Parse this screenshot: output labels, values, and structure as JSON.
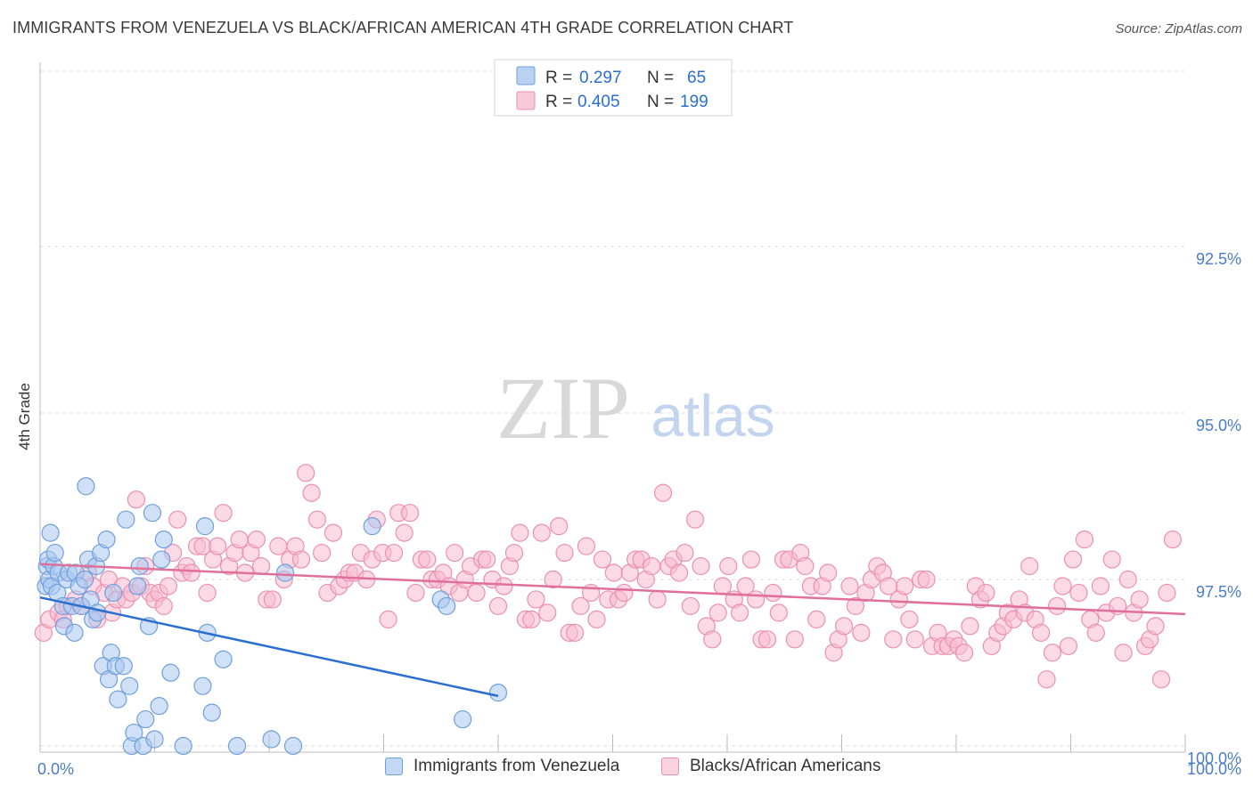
{
  "title": "IMMIGRANTS FROM VENEZUELA VS BLACK/AFRICAN AMERICAN 4TH GRADE CORRELATION CHART",
  "source": "Source: ZipAtlas.com",
  "watermark": {
    "zip": "ZIP",
    "atlas": "atlas"
  },
  "colors": {
    "blue_fill": "#a9c7ef",
    "blue_stroke": "#6f9fdc",
    "blue_line": "#2a6fd0",
    "pink_fill": "#f7bcd0",
    "pink_stroke": "#ec8fb0",
    "pink_line": "#e0709a",
    "tick_label": "#4a7cc7",
    "grid": "#d9d9d9"
  },
  "legend_box": {
    "rows": [
      {
        "r_label": "R =",
        "r_value": "0.297",
        "n_label": "N =",
        "n_value": "65",
        "color": "blue"
      },
      {
        "r_label": "R =",
        "r_value": "0.405",
        "n_label": "N =",
        "n_value": "199",
        "color": "pink"
      }
    ]
  },
  "legend_bottom": [
    {
      "label": "Immigrants from Venezuela",
      "color": "blue"
    },
    {
      "label": "Blacks/African Americans",
      "color": "pink"
    }
  ],
  "chart_data": {
    "type": "scatter",
    "title": "IMMIGRANTS FROM VENEZUELA VS BLACK/AFRICAN AMERICAN 4TH GRADE CORRELATION CHART",
    "xlabel": "",
    "ylabel": "4th Grade",
    "xlim": [
      0,
      100
    ],
    "ylim": [
      90.5,
      100.1
    ],
    "x_tick_labels": [
      {
        "value": 0,
        "label": "0.0%"
      },
      {
        "value": 100,
        "label": "100.0%"
      }
    ],
    "y_tick_labels": [
      {
        "value": 100.0,
        "label": "100.0%"
      },
      {
        "value": 97.5,
        "label": "97.5%"
      },
      {
        "value": 95.0,
        "label": "95.0%"
      },
      {
        "value": 92.5,
        "label": "92.5%"
      }
    ],
    "grid": true,
    "legend_position": "top-center",
    "series": [
      {
        "name": "Immigrants from Venezuela",
        "color": "blue",
        "R": 0.297,
        "N": 65,
        "trend": {
          "x": [
            0,
            40
          ],
          "y": [
            97.77,
            99.25
          ]
        },
        "points": [
          [
            0.5,
            97.6
          ],
          [
            0.6,
            97.3
          ],
          [
            0.7,
            97.2
          ],
          [
            0.8,
            97.5
          ],
          [
            0.9,
            96.8
          ],
          [
            1.0,
            97.6
          ],
          [
            1.2,
            97.3
          ],
          [
            1.3,
            97.1
          ],
          [
            1.5,
            97.7
          ],
          [
            1.6,
            97.4
          ],
          [
            2.0,
            97.9
          ],
          [
            2.1,
            98.2
          ],
          [
            2.3,
            97.5
          ],
          [
            2.5,
            97.4
          ],
          [
            2.8,
            97.9
          ],
          [
            3.0,
            98.3
          ],
          [
            3.1,
            97.4
          ],
          [
            3.4,
            97.6
          ],
          [
            3.6,
            97.9
          ],
          [
            3.9,
            97.5
          ],
          [
            4.0,
            96.1
          ],
          [
            4.2,
            97.2
          ],
          [
            4.4,
            97.8
          ],
          [
            4.6,
            98.1
          ],
          [
            4.9,
            97.3
          ],
          [
            5.0,
            98.0
          ],
          [
            5.3,
            97.1
          ],
          [
            5.5,
            98.8
          ],
          [
            5.8,
            96.9
          ],
          [
            6.0,
            99.0
          ],
          [
            6.2,
            98.6
          ],
          [
            6.4,
            97.7
          ],
          [
            6.6,
            98.8
          ],
          [
            6.8,
            99.3
          ],
          [
            7.3,
            98.8
          ],
          [
            7.5,
            96.6
          ],
          [
            7.8,
            99.1
          ],
          [
            8.0,
            100.0
          ],
          [
            8.2,
            99.8
          ],
          [
            8.5,
            97.6
          ],
          [
            8.7,
            97.3
          ],
          [
            9.0,
            100.0
          ],
          [
            9.2,
            99.6
          ],
          [
            9.5,
            98.2
          ],
          [
            9.8,
            96.5
          ],
          [
            10.0,
            99.9
          ],
          [
            10.4,
            99.4
          ],
          [
            10.6,
            97.2
          ],
          [
            10.8,
            96.9
          ],
          [
            11.4,
            98.9
          ],
          [
            12.5,
            100.0
          ],
          [
            14.2,
            99.1
          ],
          [
            14.4,
            96.7
          ],
          [
            14.6,
            98.3
          ],
          [
            15.0,
            99.5
          ],
          [
            16.0,
            98.7
          ],
          [
            17.2,
            100.0
          ],
          [
            20.2,
            99.9
          ],
          [
            21.4,
            97.4
          ],
          [
            22.1,
            100.0
          ],
          [
            29.0,
            96.7
          ],
          [
            35.0,
            97.8
          ],
          [
            35.5,
            97.9
          ],
          [
            36.9,
            99.6
          ],
          [
            40.0,
            99.2
          ]
        ]
      },
      {
        "name": "Blacks/African Americans",
        "color": "pink",
        "R": 0.405,
        "N": 199,
        "trend": {
          "x": [
            0,
            100
          ],
          "y": [
            97.27,
            98.02
          ]
        },
        "points": [
          [
            0.3,
            98.3
          ],
          [
            0.8,
            98.1
          ],
          [
            1.6,
            98.0
          ],
          [
            2.0,
            98.1
          ],
          [
            2.4,
            97.9
          ],
          [
            3.1,
            97.8
          ],
          [
            3.6,
            97.9
          ],
          [
            4.2,
            97.4
          ],
          [
            4.6,
            97.6
          ],
          [
            5.0,
            98.1
          ],
          [
            5.6,
            97.7
          ],
          [
            6.0,
            97.5
          ],
          [
            6.3,
            98.0
          ],
          [
            6.7,
            97.8
          ],
          [
            7.2,
            97.6
          ],
          [
            7.5,
            97.8
          ],
          [
            8.0,
            97.7
          ],
          [
            8.4,
            96.3
          ],
          [
            8.8,
            97.6
          ],
          [
            9.2,
            97.3
          ],
          [
            9.6,
            97.7
          ],
          [
            10.0,
            97.8
          ],
          [
            10.4,
            97.7
          ],
          [
            10.8,
            97.9
          ],
          [
            11.2,
            97.6
          ],
          [
            11.6,
            97.1
          ],
          [
            12.0,
            96.6
          ],
          [
            12.4,
            97.4
          ],
          [
            12.8,
            97.3
          ],
          [
            13.2,
            97.4
          ],
          [
            13.7,
            97.0
          ],
          [
            14.2,
            97.0
          ],
          [
            14.6,
            97.7
          ],
          [
            15.1,
            97.2
          ],
          [
            15.5,
            97.0
          ],
          [
            16.0,
            96.5
          ],
          [
            16.5,
            97.3
          ],
          [
            17.0,
            97.1
          ],
          [
            17.4,
            96.9
          ],
          [
            17.9,
            97.4
          ],
          [
            18.4,
            97.1
          ],
          [
            18.9,
            96.9
          ],
          [
            19.3,
            97.3
          ],
          [
            19.8,
            97.8
          ],
          [
            20.3,
            97.8
          ],
          [
            20.8,
            97.0
          ],
          [
            21.3,
            97.5
          ],
          [
            21.8,
            97.2
          ],
          [
            22.3,
            97.0
          ],
          [
            22.8,
            97.2
          ],
          [
            23.2,
            95.9
          ],
          [
            23.7,
            96.2
          ],
          [
            24.2,
            96.6
          ],
          [
            24.6,
            97.1
          ],
          [
            25.1,
            97.7
          ],
          [
            25.6,
            96.8
          ],
          [
            26.1,
            97.6
          ],
          [
            26.6,
            97.5
          ],
          [
            27.0,
            97.4
          ],
          [
            27.5,
            97.4
          ],
          [
            28.0,
            97.1
          ],
          [
            28.5,
            97.5
          ],
          [
            29.0,
            97.2
          ],
          [
            29.4,
            96.6
          ],
          [
            29.9,
            97.1
          ],
          [
            30.4,
            98.1
          ],
          [
            30.9,
            97.1
          ],
          [
            31.3,
            96.5
          ],
          [
            31.8,
            96.8
          ],
          [
            32.3,
            96.5
          ],
          [
            32.8,
            97.7
          ],
          [
            33.3,
            97.2
          ],
          [
            33.8,
            97.2
          ],
          [
            34.2,
            97.5
          ],
          [
            34.7,
            97.5
          ],
          [
            35.2,
            97.4
          ],
          [
            35.7,
            97.6
          ],
          [
            36.2,
            97.1
          ],
          [
            36.6,
            97.7
          ],
          [
            37.1,
            97.5
          ],
          [
            37.6,
            97.3
          ],
          [
            38.1,
            97.7
          ],
          [
            38.6,
            97.2
          ],
          [
            39.0,
            97.2
          ],
          [
            39.5,
            97.5
          ],
          [
            40.0,
            97.9
          ],
          [
            40.5,
            97.6
          ],
          [
            41.0,
            97.3
          ],
          [
            41.4,
            97.1
          ],
          [
            41.9,
            96.8
          ],
          [
            42.4,
            98.1
          ],
          [
            42.9,
            98.1
          ],
          [
            43.3,
            97.8
          ],
          [
            43.8,
            96.8
          ],
          [
            44.3,
            98.0
          ],
          [
            44.8,
            97.5
          ],
          [
            45.3,
            96.7
          ],
          [
            45.8,
            97.1
          ],
          [
            46.2,
            98.3
          ],
          [
            46.7,
            98.3
          ],
          [
            47.2,
            97.9
          ],
          [
            47.7,
            97.0
          ],
          [
            48.1,
            97.7
          ],
          [
            48.6,
            98.1
          ],
          [
            49.1,
            97.2
          ],
          [
            49.6,
            97.8
          ],
          [
            50.1,
            97.4
          ],
          [
            50.5,
            97.8
          ],
          [
            51.0,
            97.7
          ],
          [
            51.5,
            97.4
          ],
          [
            52.0,
            97.2
          ],
          [
            52.5,
            97.2
          ],
          [
            52.9,
            97.5
          ],
          [
            53.4,
            97.3
          ],
          [
            53.9,
            97.8
          ],
          [
            54.4,
            96.2
          ],
          [
            54.9,
            97.3
          ],
          [
            55.3,
            97.2
          ],
          [
            55.8,
            97.4
          ],
          [
            56.3,
            97.1
          ],
          [
            56.8,
            97.9
          ],
          [
            57.2,
            96.6
          ],
          [
            57.7,
            97.3
          ],
          [
            58.2,
            98.2
          ],
          [
            58.7,
            98.4
          ],
          [
            59.2,
            98.0
          ],
          [
            59.6,
            97.6
          ],
          [
            60.1,
            97.3
          ],
          [
            60.6,
            97.8
          ],
          [
            61.1,
            98.0
          ],
          [
            61.6,
            97.6
          ],
          [
            62.1,
            97.2
          ],
          [
            62.5,
            97.8
          ],
          [
            63.0,
            98.4
          ],
          [
            63.5,
            98.4
          ],
          [
            64.0,
            97.7
          ],
          [
            64.5,
            98.0
          ],
          [
            64.9,
            97.2
          ],
          [
            65.4,
            97.2
          ],
          [
            65.9,
            98.4
          ],
          [
            66.4,
            97.1
          ],
          [
            66.8,
            97.3
          ],
          [
            67.3,
            97.6
          ],
          [
            67.8,
            98.1
          ],
          [
            68.3,
            97.6
          ],
          [
            68.8,
            97.4
          ],
          [
            69.3,
            98.6
          ],
          [
            69.7,
            98.4
          ],
          [
            70.2,
            98.2
          ],
          [
            70.7,
            97.6
          ],
          [
            71.2,
            97.9
          ],
          [
            71.7,
            98.3
          ],
          [
            72.1,
            97.7
          ],
          [
            72.6,
            97.5
          ],
          [
            73.1,
            97.3
          ],
          [
            73.6,
            97.4
          ],
          [
            74.1,
            97.6
          ],
          [
            74.5,
            98.4
          ],
          [
            75.0,
            97.8
          ],
          [
            75.5,
            97.6
          ],
          [
            75.9,
            98.1
          ],
          [
            76.4,
            98.4
          ],
          [
            76.9,
            97.5
          ],
          [
            77.4,
            97.5
          ],
          [
            77.9,
            98.5
          ],
          [
            78.4,
            98.3
          ],
          [
            78.8,
            98.5
          ],
          [
            79.3,
            98.5
          ],
          [
            79.8,
            98.4
          ],
          [
            80.2,
            98.5
          ],
          [
            80.7,
            98.6
          ],
          [
            81.2,
            98.2
          ],
          [
            81.7,
            97.6
          ],
          [
            82.1,
            97.8
          ],
          [
            82.6,
            97.7
          ],
          [
            83.1,
            98.5
          ],
          [
            83.6,
            98.3
          ],
          [
            84.1,
            98.2
          ],
          [
            84.5,
            98.0
          ],
          [
            85.0,
            98.1
          ],
          [
            85.5,
            97.8
          ],
          [
            86.0,
            98.0
          ],
          [
            86.4,
            97.3
          ],
          [
            86.9,
            98.1
          ],
          [
            87.4,
            98.3
          ],
          [
            87.9,
            99.0
          ],
          [
            88.4,
            98.6
          ],
          [
            88.8,
            97.9
          ],
          [
            89.3,
            97.6
          ],
          [
            89.8,
            98.5
          ],
          [
            90.2,
            97.2
          ],
          [
            90.7,
            97.7
          ],
          [
            91.2,
            96.9
          ],
          [
            91.7,
            98.1
          ],
          [
            92.2,
            98.3
          ],
          [
            92.6,
            97.6
          ],
          [
            93.1,
            98.0
          ],
          [
            93.6,
            97.2
          ],
          [
            94.1,
            97.9
          ],
          [
            94.6,
            98.6
          ],
          [
            95.0,
            97.5
          ],
          [
            95.5,
            98.0
          ],
          [
            96.0,
            97.8
          ],
          [
            96.5,
            98.5
          ],
          [
            96.9,
            98.4
          ],
          [
            97.4,
            98.2
          ],
          [
            97.9,
            99.0
          ],
          [
            98.4,
            97.7
          ],
          [
            98.9,
            96.9
          ]
        ]
      }
    ]
  }
}
